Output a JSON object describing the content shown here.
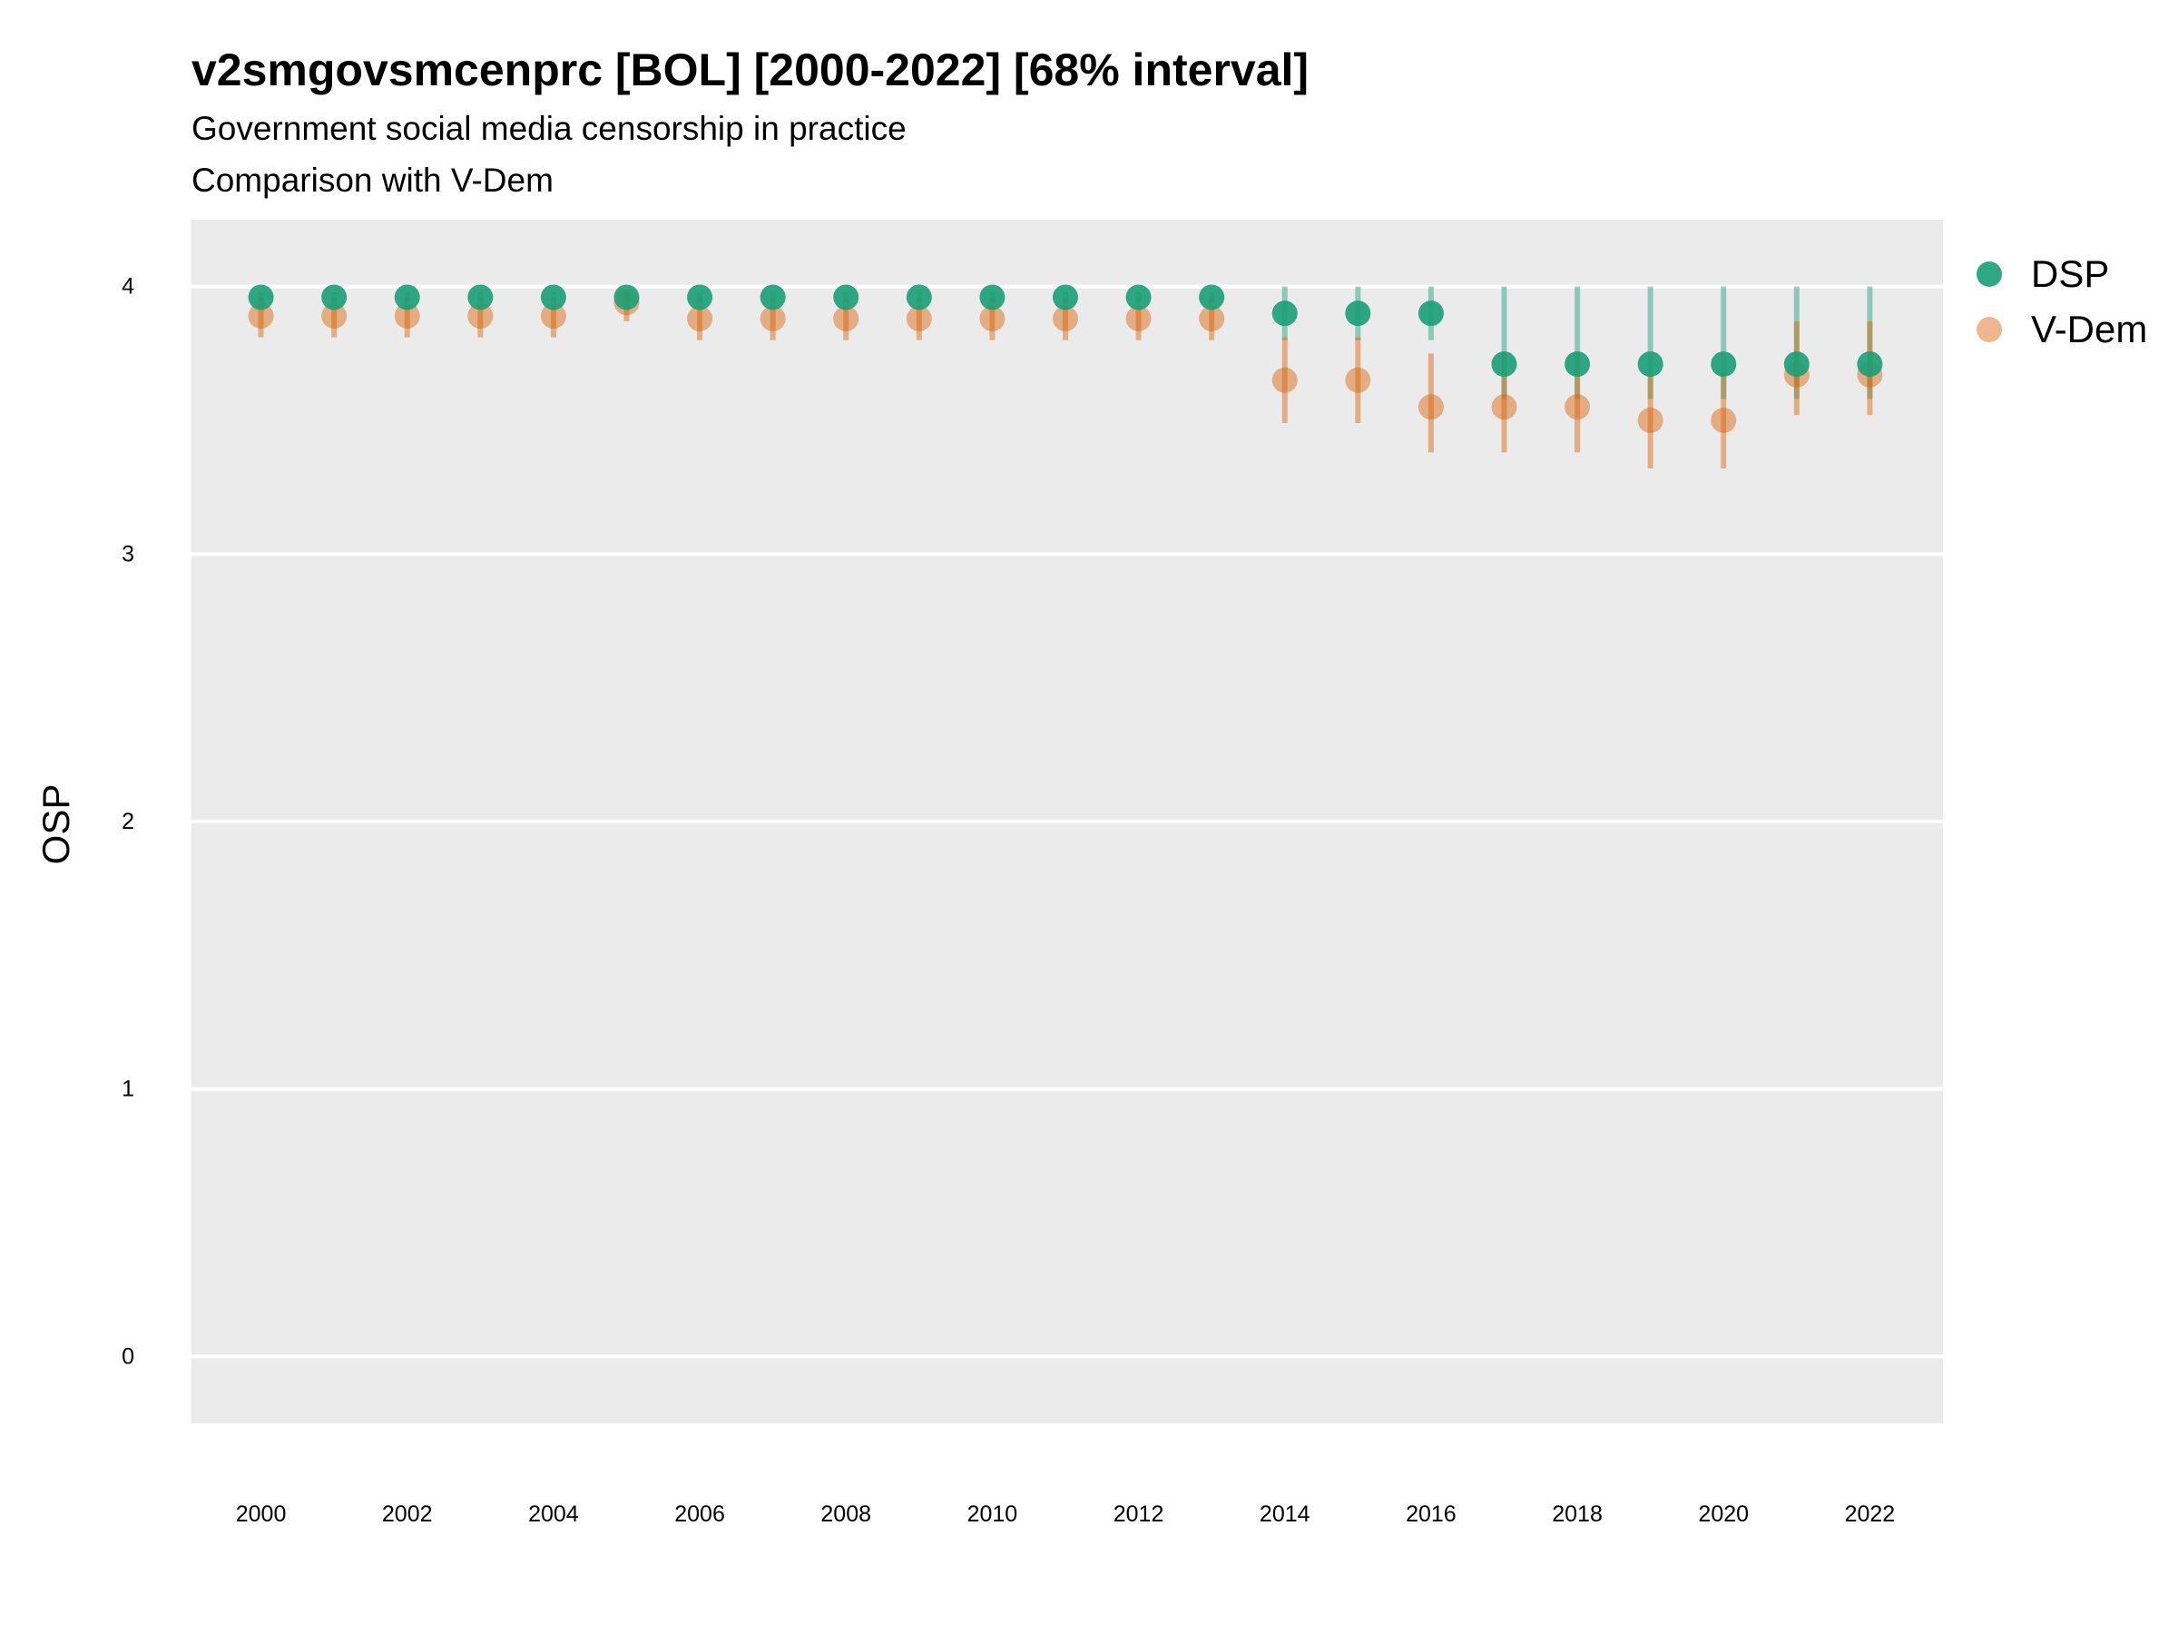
{
  "chart_data": {
    "type": "scatter",
    "title": "v2smgovsmcenprc [BOL] [2000-2022] [68% interval]",
    "subtitle": "Government social media censorship in practice",
    "caption": "Comparison with V-Dem",
    "xlabel": "",
    "ylabel": "OSP",
    "x": [
      2000,
      2001,
      2002,
      2003,
      2004,
      2005,
      2006,
      2007,
      2008,
      2009,
      2010,
      2011,
      2012,
      2013,
      2014,
      2015,
      2016,
      2017,
      2018,
      2019,
      2020,
      2021,
      2022
    ],
    "xticks": [
      "2000",
      "2002",
      "2004",
      "2006",
      "2008",
      "2010",
      "2012",
      "2014",
      "2016",
      "2018",
      "2020",
      "2022"
    ],
    "yticks": [
      "0",
      "1",
      "2",
      "3",
      "4"
    ],
    "xlim": [
      1999.05,
      2023.0
    ],
    "ylim": [
      -0.25,
      4.25
    ],
    "grid": true,
    "legend_position": "right",
    "series": [
      {
        "name": "DSP",
        "color": "#1b9e77",
        "values": [
          3.96,
          3.96,
          3.96,
          3.96,
          3.96,
          3.96,
          3.96,
          3.96,
          3.96,
          3.96,
          3.96,
          3.96,
          3.96,
          3.96,
          3.9,
          3.9,
          3.9,
          3.71,
          3.71,
          3.71,
          3.71,
          3.71,
          3.71
        ],
        "lower": [
          3.94,
          3.94,
          3.94,
          3.94,
          3.94,
          3.94,
          3.94,
          3.94,
          3.94,
          3.94,
          3.94,
          3.94,
          3.94,
          3.94,
          3.8,
          3.8,
          3.8,
          3.58,
          3.58,
          3.58,
          3.58,
          3.58,
          3.58
        ],
        "upper": [
          3.98,
          3.98,
          3.98,
          3.98,
          3.98,
          3.98,
          3.98,
          3.98,
          3.98,
          3.98,
          3.98,
          3.98,
          3.98,
          3.98,
          4.0,
          4.0,
          4.0,
          4.0,
          4.0,
          4.0,
          4.0,
          4.0,
          4.0
        ]
      },
      {
        "name": "V-Dem",
        "color": "#d95f02",
        "values": [
          3.89,
          3.89,
          3.89,
          3.89,
          3.89,
          3.94,
          3.88,
          3.88,
          3.88,
          3.88,
          3.88,
          3.88,
          3.88,
          3.88,
          3.65,
          3.65,
          3.55,
          3.55,
          3.55,
          3.5,
          3.5,
          3.67,
          3.67
        ],
        "lower": [
          3.81,
          3.81,
          3.81,
          3.81,
          3.81,
          3.87,
          3.8,
          3.8,
          3.8,
          3.8,
          3.8,
          3.8,
          3.8,
          3.8,
          3.49,
          3.49,
          3.38,
          3.38,
          3.38,
          3.32,
          3.32,
          3.52,
          3.52
        ],
        "upper": [
          3.96,
          3.96,
          3.96,
          3.96,
          3.96,
          3.99,
          3.96,
          3.96,
          3.96,
          3.96,
          3.96,
          3.96,
          3.96,
          3.96,
          3.81,
          3.81,
          3.75,
          3.75,
          3.75,
          3.68,
          3.68,
          3.87,
          3.87
        ]
      }
    ]
  }
}
